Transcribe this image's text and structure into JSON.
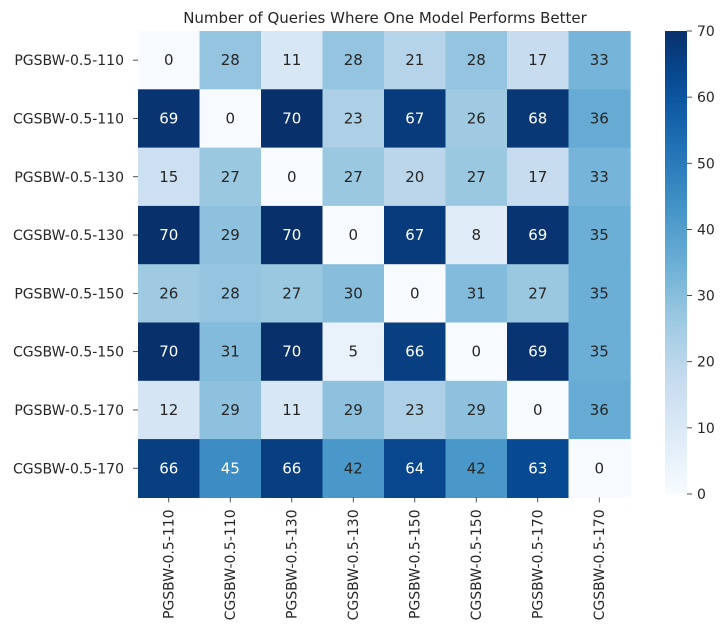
{
  "chart_data": {
    "type": "heatmap",
    "title": "Number of Queries Where One Model Performs Better",
    "row_labels": [
      "PGSBW-0.5-110",
      "CGSBW-0.5-110",
      "PGSBW-0.5-130",
      "CGSBW-0.5-130",
      "PGSBW-0.5-150",
      "CGSBW-0.5-150",
      "PGSBW-0.5-170",
      "CGSBW-0.5-170"
    ],
    "col_labels": [
      "PGSBW-0.5-110",
      "CGSBW-0.5-110",
      "PGSBW-0.5-130",
      "CGSBW-0.5-130",
      "PGSBW-0.5-150",
      "CGSBW-0.5-150",
      "PGSBW-0.5-170",
      "CGSBW-0.5-170"
    ],
    "values": [
      [
        0,
        28,
        11,
        28,
        21,
        28,
        17,
        33
      ],
      [
        69,
        0,
        70,
        23,
        67,
        26,
        68,
        36
      ],
      [
        15,
        27,
        0,
        27,
        20,
        27,
        17,
        33
      ],
      [
        70,
        29,
        70,
        0,
        67,
        8,
        69,
        35
      ],
      [
        26,
        28,
        27,
        30,
        0,
        31,
        27,
        35
      ],
      [
        70,
        31,
        70,
        5,
        66,
        0,
        69,
        35
      ],
      [
        12,
        29,
        11,
        29,
        23,
        29,
        0,
        36
      ],
      [
        66,
        45,
        66,
        42,
        64,
        42,
        63,
        0
      ]
    ],
    "colormap": "Blues",
    "colorbar": {
      "min": 0,
      "max": 70,
      "ticks": [
        0,
        10,
        20,
        30,
        40,
        50,
        60,
        70
      ]
    },
    "annotated": true,
    "grid": false
  }
}
